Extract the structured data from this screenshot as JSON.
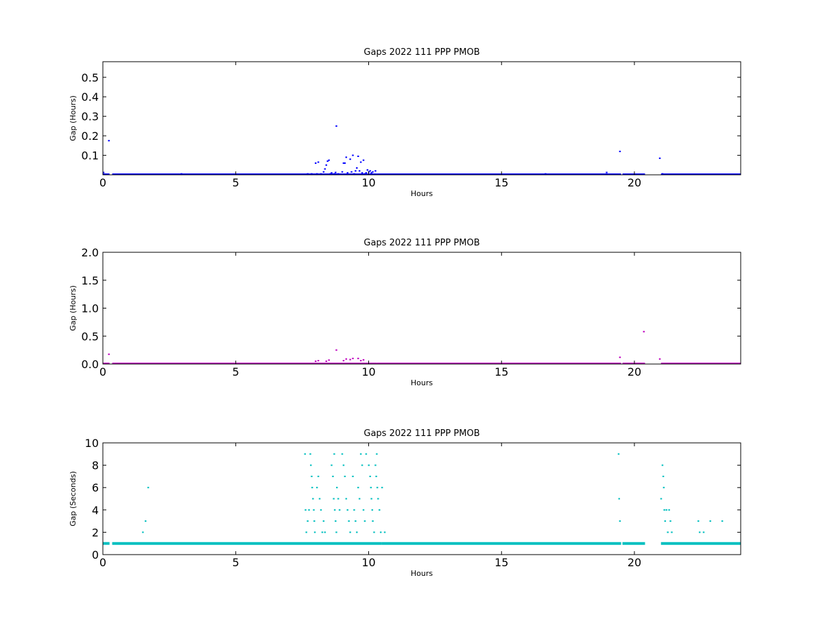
{
  "chart_data": [
    {
      "type": "scatter",
      "title": "Gaps 2022 111 PPP  PMOB",
      "xlabel": "Hours",
      "ylabel": "Gap (Hours)",
      "xlim": [
        0,
        24
      ],
      "ylim": [
        0,
        0.58
      ],
      "xticks": [
        0,
        5,
        10,
        15,
        20
      ],
      "yticks": [
        0.1,
        0.2,
        0.3,
        0.4,
        0.5
      ],
      "grid": false,
      "series": [
        {
          "color": "#0000ff",
          "baseline": {
            "value": 0.0,
            "ranges": [
              [
                0,
                0.25
              ],
              [
                0.35,
                7.6
              ],
              [
                7.6,
                10.3
              ],
              [
                10.3,
                19.5
              ],
              [
                19.55,
                20.4
              ],
              [
                21.0,
                24
              ]
            ]
          },
          "points": [
            [
              0.02,
              0.012
            ],
            [
              0.22,
              0.175
            ],
            [
              2.95,
              0.005
            ],
            [
              7.7,
              0.005
            ],
            [
              7.85,
              0.005
            ],
            [
              8.0,
              0.06
            ],
            [
              8.05,
              0.005
            ],
            [
              8.1,
              0.065
            ],
            [
              8.2,
              0.005
            ],
            [
              8.3,
              0.015
            ],
            [
              8.35,
              0.03
            ],
            [
              8.4,
              0.05
            ],
            [
              8.45,
              0.07
            ],
            [
              8.5,
              0.075
            ],
            [
              8.55,
              0.005
            ],
            [
              8.6,
              0.01
            ],
            [
              8.7,
              0.005
            ],
            [
              8.75,
              0.012
            ],
            [
              8.78,
              0.25
            ],
            [
              8.85,
              0.005
            ],
            [
              9.0,
              0.015
            ],
            [
              9.05,
              0.06
            ],
            [
              9.1,
              0.06
            ],
            [
              9.15,
              0.09
            ],
            [
              9.2,
              0.01
            ],
            [
              9.3,
              0.08
            ],
            [
              9.35,
              0.015
            ],
            [
              9.4,
              0.1
            ],
            [
              9.45,
              0.005
            ],
            [
              9.5,
              0.02
            ],
            [
              9.55,
              0.035
            ],
            [
              9.6,
              0.095
            ],
            [
              9.65,
              0.02
            ],
            [
              9.7,
              0.065
            ],
            [
              9.75,
              0.01
            ],
            [
              9.8,
              0.075
            ],
            [
              9.85,
              0.005
            ],
            [
              9.9,
              0.01
            ],
            [
              9.95,
              0.025
            ],
            [
              10.0,
              0.015
            ],
            [
              10.05,
              0.02
            ],
            [
              10.1,
              0.01
            ],
            [
              10.15,
              0.015
            ],
            [
              10.25,
              0.02
            ],
            [
              16.65,
              0.005
            ],
            [
              18.95,
              0.012
            ],
            [
              19.45,
              0.12
            ],
            [
              20.95,
              0.085
            ],
            [
              21.05,
              0.005
            ]
          ]
        }
      ]
    },
    {
      "type": "scatter",
      "title": "Gaps 2022 111 PPP  PMOB",
      "xlabel": "Hours",
      "ylabel": "Gap (Hours)",
      "xlim": [
        0,
        24
      ],
      "ylim": [
        0,
        2.0
      ],
      "xticks": [
        0,
        5,
        10,
        15,
        20
      ],
      "yticks": [
        0.0,
        0.5,
        1.0,
        1.5,
        2.0
      ],
      "ytick_labels": [
        "0.0",
        "0.5",
        "1.0",
        "1.5",
        "2.0"
      ],
      "grid": false,
      "series": [
        {
          "color": "#bf00bf",
          "baseline": {
            "value": 0.0,
            "ranges": [
              [
                0,
                0.25
              ],
              [
                0.35,
                7.6
              ],
              [
                7.6,
                10.3
              ],
              [
                10.3,
                19.5
              ],
              [
                19.55,
                20.4
              ],
              [
                21.0,
                24
              ]
            ]
          },
          "points": [
            [
              0.22,
              0.175
            ],
            [
              8.0,
              0.05
            ],
            [
              8.1,
              0.06
            ],
            [
              8.4,
              0.05
            ],
            [
              8.5,
              0.07
            ],
            [
              8.78,
              0.25
            ],
            [
              9.05,
              0.06
            ],
            [
              9.15,
              0.09
            ],
            [
              9.3,
              0.08
            ],
            [
              9.4,
              0.1
            ],
            [
              9.6,
              0.1
            ],
            [
              9.7,
              0.06
            ],
            [
              9.8,
              0.075
            ],
            [
              19.45,
              0.12
            ],
            [
              20.35,
              0.58
            ],
            [
              20.95,
              0.09
            ]
          ]
        }
      ]
    },
    {
      "type": "scatter",
      "title": "Gaps 2022 111 PPP  PMOB",
      "xlabel": "Hours",
      "ylabel": "Gap (Seconds)",
      "xlim": [
        0,
        24
      ],
      "ylim": [
        0,
        10
      ],
      "xticks": [
        0,
        5,
        10,
        15,
        20
      ],
      "yticks": [
        0,
        2,
        4,
        6,
        8,
        10
      ],
      "grid": false,
      "series": [
        {
          "color": "#00bfbf",
          "baseline": {
            "value": 1,
            "ranges": [
              [
                0,
                0.25
              ],
              [
                0.35,
                7.6
              ],
              [
                7.6,
                10.5
              ],
              [
                10.5,
                19.5
              ],
              [
                19.55,
                20.4
              ],
              [
                21.0,
                24
              ]
            ]
          },
          "points": [
            [
              1.5,
              2
            ],
            [
              1.6,
              3
            ],
            [
              1.7,
              6
            ],
            [
              7.6,
              9
            ],
            [
              7.62,
              4
            ],
            [
              7.65,
              2
            ],
            [
              7.7,
              3
            ],
            [
              7.75,
              4
            ],
            [
              7.8,
              9
            ],
            [
              7.82,
              8
            ],
            [
              7.85,
              7
            ],
            [
              7.87,
              6
            ],
            [
              7.9,
              5
            ],
            [
              7.93,
              4
            ],
            [
              7.95,
              3
            ],
            [
              7.97,
              2
            ],
            [
              8.05,
              6
            ],
            [
              8.1,
              7
            ],
            [
              8.15,
              5
            ],
            [
              8.2,
              4
            ],
            [
              8.25,
              2
            ],
            [
              8.3,
              3
            ],
            [
              8.35,
              2
            ],
            [
              8.6,
              8
            ],
            [
              8.65,
              7
            ],
            [
              8.68,
              5
            ],
            [
              8.7,
              9
            ],
            [
              8.72,
              4
            ],
            [
              8.75,
              3
            ],
            [
              8.78,
              2
            ],
            [
              8.8,
              6
            ],
            [
              8.85,
              5
            ],
            [
              8.9,
              4
            ],
            [
              9.0,
              9
            ],
            [
              9.05,
              8
            ],
            [
              9.1,
              7
            ],
            [
              9.15,
              5
            ],
            [
              9.2,
              4
            ],
            [
              9.25,
              3
            ],
            [
              9.3,
              2
            ],
            [
              9.4,
              7
            ],
            [
              9.45,
              4
            ],
            [
              9.5,
              3
            ],
            [
              9.55,
              2
            ],
            [
              9.6,
              6
            ],
            [
              9.65,
              5
            ],
            [
              9.7,
              9
            ],
            [
              9.75,
              8
            ],
            [
              9.8,
              4
            ],
            [
              9.85,
              3
            ],
            [
              9.9,
              9
            ],
            [
              10.0,
              8
            ],
            [
              10.05,
              7
            ],
            [
              10.08,
              6
            ],
            [
              10.1,
              5
            ],
            [
              10.13,
              4
            ],
            [
              10.15,
              3
            ],
            [
              10.2,
              2
            ],
            [
              10.25,
              8
            ],
            [
              10.28,
              7
            ],
            [
              10.3,
              9
            ],
            [
              10.32,
              6
            ],
            [
              10.35,
              5
            ],
            [
              10.4,
              4
            ],
            [
              10.45,
              2
            ],
            [
              10.5,
              6
            ],
            [
              10.6,
              2
            ],
            [
              19.4,
              9
            ],
            [
              19.42,
              5
            ],
            [
              19.45,
              3
            ],
            [
              21.0,
              5
            ],
            [
              21.05,
              8
            ],
            [
              21.08,
              7
            ],
            [
              21.1,
              6
            ],
            [
              21.12,
              4
            ],
            [
              21.15,
              3
            ],
            [
              21.2,
              4
            ],
            [
              21.25,
              2
            ],
            [
              21.3,
              4
            ],
            [
              21.35,
              3
            ],
            [
              21.4,
              2
            ],
            [
              22.4,
              3
            ],
            [
              22.45,
              2
            ],
            [
              22.6,
              2
            ],
            [
              22.85,
              3
            ],
            [
              23.3,
              3
            ]
          ]
        }
      ]
    }
  ]
}
